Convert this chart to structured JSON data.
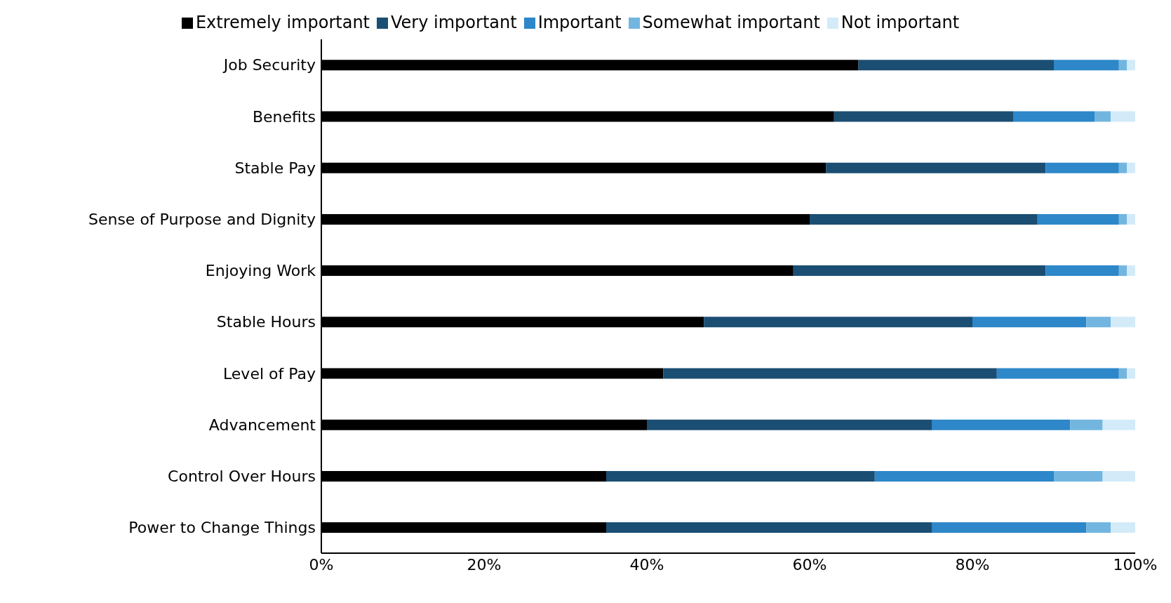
{
  "chart_data": {
    "type": "bar",
    "orientation": "horizontal",
    "stacked": true,
    "legend": "top",
    "grid": false,
    "categories": [
      "Job Security",
      "Benefits",
      "Stable Pay",
      "Sense of Purpose and Dignity",
      "Enjoying Work",
      "Stable Hours",
      "Level of Pay",
      "Advancement",
      "Control Over Hours",
      "Power to Change Things"
    ],
    "series": [
      {
        "name": "Extremely important",
        "color": "#000000",
        "values": [
          66,
          63,
          62,
          60,
          58,
          47,
          42,
          40,
          35,
          35
        ]
      },
      {
        "name": "Very important",
        "color": "#1b4e73",
        "values": [
          24,
          22,
          27,
          28,
          31,
          33,
          41,
          35,
          33,
          40
        ]
      },
      {
        "name": "Important",
        "color": "#2d87c9",
        "values": [
          8,
          10,
          9,
          10,
          9,
          14,
          15,
          17,
          22,
          19
        ]
      },
      {
        "name": "Somewhat important",
        "color": "#72b6e0",
        "values": [
          1,
          2,
          1,
          1,
          1,
          3,
          1,
          4,
          6,
          3
        ]
      },
      {
        "name": "Not important",
        "color": "#d3ebf8",
        "values": [
          1,
          3,
          1,
          1,
          1,
          3,
          1,
          4,
          4,
          3
        ]
      }
    ],
    "xlim": [
      0,
      100
    ],
    "xticks": [
      {
        "value": 0,
        "label": "0%"
      },
      {
        "value": 20,
        "label": "20%"
      },
      {
        "value": 40,
        "label": "40%"
      },
      {
        "value": 60,
        "label": "60%"
      },
      {
        "value": 80,
        "label": "80%"
      },
      {
        "value": 100,
        "label": "100%"
      }
    ]
  }
}
